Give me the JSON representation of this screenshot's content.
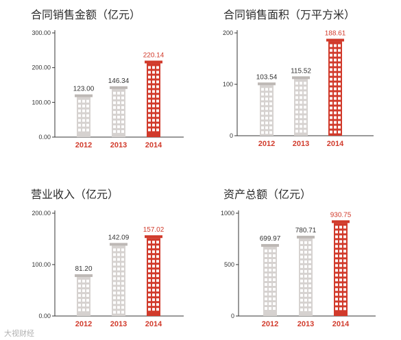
{
  "colors": {
    "highlight": "#d13a2b",
    "normal": "#d6d2d0",
    "normal_cap": "#bdb8b5",
    "axis": "#333333",
    "label_dark": "#333333"
  },
  "watermark": "大视财经",
  "chart_data": [
    {
      "type": "bar",
      "title": "合同销售金额（亿元）",
      "categories": [
        "2012",
        "2013",
        "2014"
      ],
      "values": [
        123.0,
        146.34,
        220.14
      ],
      "value_labels": [
        "123.00",
        "146.34",
        "220.14"
      ],
      "yticks": [
        "0.00",
        "100.00",
        "200.00",
        "300.00"
      ],
      "ylim": [
        0,
        300
      ],
      "highlight_index": 2,
      "grid": false,
      "legend": "none"
    },
    {
      "type": "bar",
      "title": "合同销售面积（万平方米）",
      "categories": [
        "2012",
        "2013",
        "2014"
      ],
      "values": [
        103.54,
        115.52,
        188.61
      ],
      "value_labels": [
        "103.54",
        "115.52",
        "188.61"
      ],
      "yticks": [
        "0",
        "100",
        "200"
      ],
      "ylim": [
        0,
        200
      ],
      "highlight_index": 2,
      "grid": false,
      "legend": "none"
    },
    {
      "type": "bar",
      "title": "营业收入（亿元）",
      "categories": [
        "2012",
        "2013",
        "2014"
      ],
      "values": [
        81.2,
        142.09,
        157.02
      ],
      "value_labels": [
        "81.20",
        "142.09",
        "157.02"
      ],
      "yticks": [
        "0.00",
        "100.00",
        "200.00"
      ],
      "ylim": [
        0,
        200
      ],
      "highlight_index": 2,
      "grid": false,
      "legend": "none"
    },
    {
      "type": "bar",
      "title": "资产总额（亿元）",
      "categories": [
        "2012",
        "2013",
        "2014"
      ],
      "values": [
        699.97,
        780.71,
        930.75
      ],
      "value_labels": [
        "699.97",
        "780.71",
        "930.75"
      ],
      "yticks": [
        "0",
        "500",
        "1000"
      ],
      "ylim": [
        0,
        1000
      ],
      "highlight_index": 2,
      "grid": false,
      "legend": "none"
    }
  ]
}
